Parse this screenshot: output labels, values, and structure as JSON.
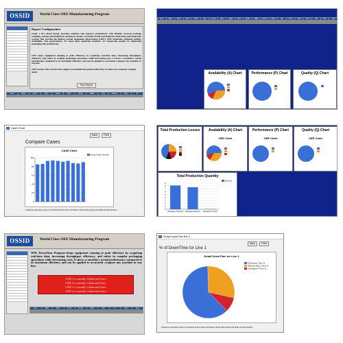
{
  "panel1": {
    "logo": "OSSID",
    "title": "World Class OEE Manufacturing Program",
    "report_heading": "Report Configuration",
    "para1": "Ossid, a Pro Mach brand, provides solutions that improve productivity with flexible, accurate package weighing, pricing and labeling in continuous motion. We build, install and maintain stand alone and integrated systems that provide the highest overall equipment effectiveness (OEE). OEE maintains sufficient quality, availability and performance. It's more than capturing numbers, it's improving quality by improving packaging line productivity.",
    "para2": "OEE keeps equipment running at peak efficiency by acquiring real-time data, increasing throughput, efficiency, and safety in complex packaging operations while decreasing costs. It shows a machine's actual performance compared to its maximum efficiency and can be applied to accurately compare any machine or any line.",
    "para3": "OEE ensures that you have the support to maintain the peak productivity to meet your company's unique needs.",
    "run_button": "Run Report"
  },
  "panel2": {
    "availability_title": "Availability (A) Chart",
    "performance_title": "Performance (P) Chart",
    "quality_title": "Quality (Q) Chart"
  },
  "panel3": {
    "window_title": "Case Chart",
    "save_button": "Save",
    "print_button": "Print",
    "heading": "Compare Cases",
    "chart_title": "CASE Chart",
    "legend": "Good Cycle Number",
    "footer": "Production Downtime report for 5/1/2011 8:20:34 AM to 5/7/2011 3:36:04 PM including All Shifts and All Products"
  },
  "panel4": {
    "losses_title": "Total Production Losses",
    "availability_title": "Availability (A) Chart",
    "performance_title": "Performance (P) Chart",
    "quality_title": "Quality (Q) Chart",
    "oee_label": "OEE Chart",
    "quantity_title": "Total Production Quantity",
    "qty_legend": "Series1"
  },
  "panel5": {
    "logo": "OSSID",
    "title": "World Class OEE Manufacturing Program",
    "para": "WPL DownTime Program keeps equipment running at peak efficiency by acquiring real-time data, increasing throughput, efficiency, and safety in complex packaging operations while decreasing costs. It shows a machine's actual performance compared to its maximum efficiency and can be applied to accurately compare any machine or any line.",
    "alerts": [
      "LINE 1 is currently: Online and Active",
      "LINE 2 is currently: Online and Active",
      "LINE 3 is currently: Online and Active",
      "LINE 4 is currently: Online and Active"
    ]
  },
  "panel6": {
    "window_title": "Graph report for line 1",
    "save_button": "Save",
    "print_button": "Print",
    "heading": "% of DownTime for Line 1",
    "chart_title": "Detail DownTime for Line 1",
    "legend": [
      "Production Time %",
      "Planned Down Time %",
      "Changeover Time %"
    ],
    "footer": "Production Downtime report for 5/1/2011 6:34:27 AM to 5/7/2011 3:36:04 PM including All Shifts and All Products"
  },
  "chart_data": [
    {
      "type": "bar",
      "title": "CASE Chart",
      "series": [
        {
          "name": "Good Cycle Number",
          "values": [
            85,
            86,
            93,
            94,
            93,
            91,
            93,
            88,
            87,
            90
          ]
        }
      ],
      "ylim": [
        0,
        100
      ]
    },
    {
      "type": "bar",
      "title": "Total Production Quantity",
      "categories": [
        "Packages Produced",
        "Packages Rejected",
        "Packages Pre-Run"
      ],
      "series": [
        {
          "name": "Series1",
          "values": [
            8.2,
            7.6,
            0.1
          ]
        }
      ],
      "ylim": [
        0,
        9
      ]
    },
    {
      "type": "pie",
      "title": "Detail DownTime for Line 1",
      "categories": [
        "Production Time %",
        "Planned Down Time %",
        "Changeover Time %"
      ],
      "values": [
        62,
        29,
        9
      ]
    }
  ],
  "colors": {
    "oee_blue": "#3a6fd8",
    "chart_band": "#10238a",
    "header_blue": "#1f4f92",
    "alert_red": "#e0211b",
    "logo_blue": "#1c4e9e"
  }
}
